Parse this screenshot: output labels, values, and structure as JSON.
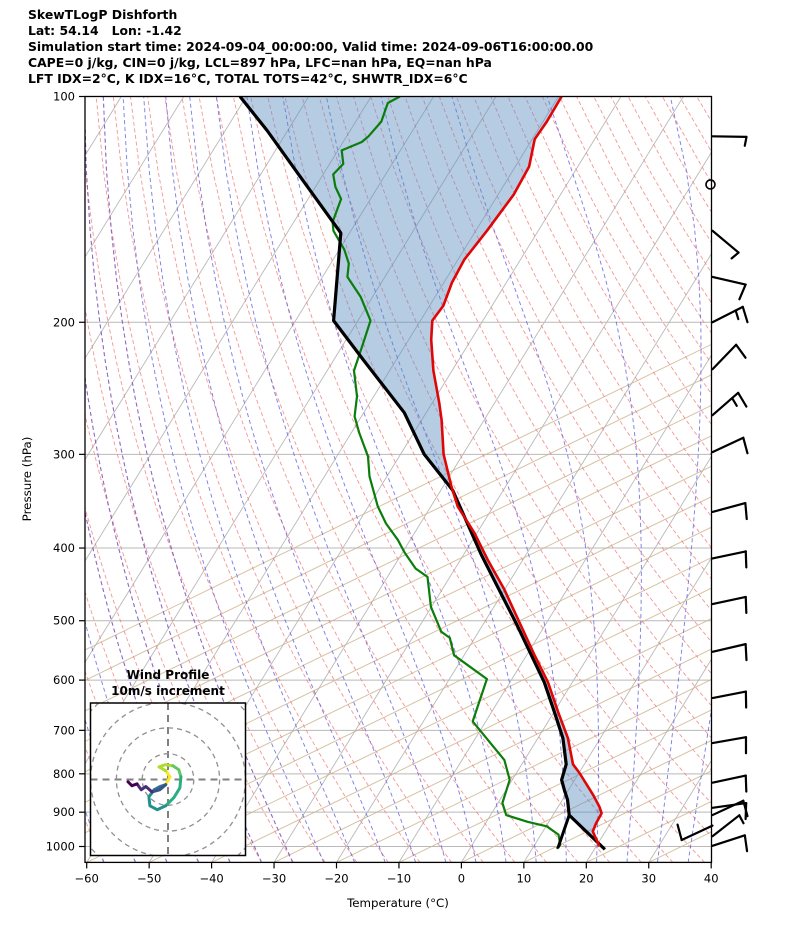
{
  "header": {
    "line1": "SkewTLogP Dishforth",
    "line2": "Lat: 54.14   Lon: -1.42",
    "line3": "Simulation start time: 2024-09-04_00:00:00, Valid time: 2024-09-06T16:00:00.00",
    "line4": "CAPE=0 j/kg, CIN=0 j/kg, LCL=897 hPa, LFC=nan hPa, EQ=nan hPa",
    "line5": "LFT IDX=2°C, K IDX=16°C, TOTAL TOTS=42°C, SHWTR_IDX=6°C"
  },
  "axes": {
    "x_label": "Temperature (°C)",
    "y_label": "Pressure (hPa)",
    "x_ticks": [
      -60,
      -50,
      -40,
      -30,
      -20,
      -10,
      0,
      10,
      20,
      30,
      40
    ],
    "y_ticks": [
      100,
      200,
      300,
      400,
      500,
      600,
      700,
      800,
      900,
      1000
    ],
    "x_range_c": [
      -60,
      40
    ],
    "p_range_hpa": [
      100,
      1050
    ]
  },
  "inset": {
    "title_line1": "Wind Profile",
    "title_line2": "10m/s increment",
    "ring_increment_ms": 10,
    "rings_ms": [
      10,
      20,
      30,
      40
    ]
  },
  "chart_data": {
    "type": "skewt-logp",
    "title": "SkewTLogP Dishforth",
    "station": {
      "lat": 54.14,
      "lon": -1.42
    },
    "indices": {
      "CAPE_jkg": 0,
      "CIN_jkg": 0,
      "LCL_hPa": 897,
      "LFC_hPa": "nan",
      "EQ_hPa": "nan",
      "LFT_IDX_C": 2,
      "K_IDX_C": 16,
      "TOTAL_TOTS_C": 42,
      "SHWTR_IDX_C": 6
    },
    "temperature_profile": [
      [
        1000,
        20.5
      ],
      [
        990,
        20.0
      ],
      [
        955,
        18.0
      ],
      [
        931,
        17.7
      ],
      [
        903,
        17.6
      ],
      [
        885,
        16.6
      ],
      [
        853,
        14.4
      ],
      [
        798,
        10.1
      ],
      [
        777,
        8.2
      ],
      [
        717,
        4.8
      ],
      [
        661,
        0.6
      ],
      [
        604,
        -3.9
      ],
      [
        556,
        -8.7
      ],
      [
        505,
        -14.1
      ],
      [
        453,
        -20.2
      ],
      [
        415,
        -25.6
      ],
      [
        382,
        -30.4
      ],
      [
        352,
        -35.7
      ],
      [
        331,
        -38.7
      ],
      [
        300,
        -43.1
      ],
      [
        270,
        -46.8
      ],
      [
        256,
        -48.9
      ],
      [
        232,
        -53.0
      ],
      [
        211,
        -56.4
      ],
      [
        199,
        -58.1
      ],
      [
        190,
        -57.8
      ],
      [
        177,
        -58.7
      ],
      [
        165,
        -59.0
      ],
      [
        151,
        -58.2
      ],
      [
        135,
        -57.5
      ],
      [
        124,
        -57.8
      ],
      [
        114,
        -59.6
      ],
      [
        108,
        -59.4
      ],
      [
        100,
        -59.5
      ]
    ],
    "dewpoint_profile": [
      [
        1007,
        13.9
      ],
      [
        995,
        14.1
      ],
      [
        964,
        12.8
      ],
      [
        940,
        10.1
      ],
      [
        927,
        6.6
      ],
      [
        908,
        2.5
      ],
      [
        875,
        0.7
      ],
      [
        815,
        -0.4
      ],
      [
        767,
        -3.2
      ],
      [
        681,
        -12.1
      ],
      [
        598,
        -14.0
      ],
      [
        556,
        -21.6
      ],
      [
        527,
        -24.0
      ],
      [
        517,
        -26.0
      ],
      [
        479,
        -30.1
      ],
      [
        437,
        -33.6
      ],
      [
        426,
        -36.3
      ],
      [
        406,
        -39.6
      ],
      [
        390,
        -42.0
      ],
      [
        371,
        -45.5
      ],
      [
        352,
        -48.5
      ],
      [
        321,
        -52.8
      ],
      [
        302,
        -55.0
      ],
      [
        281,
        -58.7
      ],
      [
        267,
        -61.1
      ],
      [
        251,
        -62.7
      ],
      [
        232,
        -65.7
      ],
      [
        214,
        -66.9
      ],
      [
        199,
        -68.0
      ],
      [
        185,
        -71.9
      ],
      [
        174,
        -76.0
      ],
      [
        167,
        -77.1
      ],
      [
        160,
        -79.2
      ],
      [
        151,
        -82.8
      ],
      [
        147,
        -83.8
      ],
      [
        137,
        -84.7
      ],
      [
        132,
        -86.8
      ],
      [
        127,
        -88.4
      ],
      [
        123,
        -87.8
      ],
      [
        118,
        -89.4
      ],
      [
        115,
        -87.0
      ],
      [
        113,
        -86.5
      ],
      [
        108,
        -85.9
      ],
      [
        102,
        -86.7
      ],
      [
        100,
        -85.4
      ]
    ],
    "parcel_profile": [
      [
        1009,
        21.7
      ],
      [
        908,
        12.6
      ],
      [
        866,
        10.8
      ],
      [
        840,
        9.3
      ],
      [
        815,
        7.9
      ],
      [
        777,
        7.1
      ],
      [
        717,
        4.0
      ],
      [
        661,
        0.0
      ],
      [
        604,
        -4.5
      ],
      [
        505,
        -14.7
      ],
      [
        408,
        -27.2
      ],
      [
        335,
        -38.1
      ],
      [
        300,
        -46.2
      ],
      [
        264,
        -53.5
      ],
      [
        225,
        -65.1
      ],
      [
        199,
        -73.9
      ],
      [
        152,
        -81.4
      ],
      [
        128,
        -93.4
      ],
      [
        111,
        -103.3
      ],
      [
        100,
        -111.0
      ]
    ],
    "mixing_line": [
      [
        1002,
        14.0
      ],
      [
        908,
        12.6
      ]
    ],
    "shade": "area between parcel profile and temperature profile",
    "wind_barbs": [
      {
        "p": 113,
        "speed_ms": 5,
        "from_deg": 91,
        "angle": -1,
        "type": "half"
      },
      {
        "p": 131,
        "speed_ms": 0,
        "from_deg": 0,
        "angle": 0,
        "type": "calm"
      },
      {
        "p": 151,
        "speed_ms": 5,
        "from_deg": 130,
        "angle": -40,
        "type": "half"
      },
      {
        "p": 174,
        "speed_ms": 10,
        "from_deg": 103,
        "angle": -13,
        "type": "full"
      },
      {
        "p": 200,
        "speed_ms": 15,
        "from_deg": 63,
        "angle": 27,
        "type": "fullhalf"
      },
      {
        "p": 231,
        "speed_ms": 10,
        "from_deg": 44,
        "angle": 46,
        "type": "full"
      },
      {
        "p": 266,
        "speed_ms": 15,
        "from_deg": 49,
        "angle": 41,
        "type": "fullhalf"
      },
      {
        "p": 298,
        "speed_ms": 10,
        "from_deg": 65,
        "angle": 25,
        "type": "full"
      },
      {
        "p": 358,
        "speed_ms": 10,
        "from_deg": 75,
        "angle": 15,
        "type": "full"
      },
      {
        "p": 413,
        "speed_ms": 10,
        "from_deg": 78,
        "angle": 12,
        "type": "full"
      },
      {
        "p": 475,
        "speed_ms": 10,
        "from_deg": 78,
        "angle": 12,
        "type": "full"
      },
      {
        "p": 550,
        "speed_ms": 10,
        "from_deg": 77,
        "angle": 13,
        "type": "full"
      },
      {
        "p": 634,
        "speed_ms": 10,
        "from_deg": 79,
        "angle": 11,
        "type": "full"
      },
      {
        "p": 728,
        "speed_ms": 10,
        "from_deg": 80,
        "angle": 10,
        "type": "full"
      },
      {
        "p": 822,
        "speed_ms": 10,
        "from_deg": 78,
        "angle": 12,
        "type": "full"
      },
      {
        "p": 888,
        "speed_ms": 10,
        "from_deg": 82,
        "angle": 8,
        "type": "full"
      },
      {
        "p": 908,
        "speed_ms": 10,
        "from_deg": 65,
        "angle": 25,
        "type": "full"
      },
      {
        "p": 938,
        "speed_ms": 10,
        "from_deg": 245,
        "angle": 205,
        "type": "full"
      },
      {
        "p": 969,
        "speed_ms": 5,
        "from_deg": 52,
        "angle": 38,
        "type": "half"
      },
      {
        "p": 998,
        "speed_ms": 10,
        "from_deg": 72,
        "angle": 18,
        "type": "full"
      }
    ],
    "hodograph_uv_ms": [
      {
        "color": "#fde725",
        "pts": [
          [
            -0.8,
            -1.7
          ],
          [
            0.8,
            1.0
          ],
          [
            -0.9,
            3.4
          ]
        ]
      },
      {
        "color": "#addc30",
        "pts": [
          [
            -0.9,
            3.4
          ],
          [
            -3.5,
            4.9
          ],
          [
            -1.2,
            5.7
          ],
          [
            1.9,
            5.3
          ]
        ]
      },
      {
        "color": "#5ec962",
        "pts": [
          [
            1.9,
            5.3
          ],
          [
            4.2,
            3.8
          ],
          [
            5.0,
            1.0
          ]
        ]
      },
      {
        "color": "#28ae80",
        "pts": [
          [
            5.0,
            1.0
          ],
          [
            4.6,
            -3.2
          ],
          [
            2.3,
            -7.0
          ],
          [
            -0.9,
            -10.2
          ]
        ]
      },
      {
        "color": "#21918c",
        "pts": [
          [
            -0.9,
            -10.2
          ],
          [
            -4.2,
            -11.7
          ],
          [
            -7.0,
            -10.2
          ],
          [
            -7.4,
            -6.7
          ],
          [
            -5.4,
            -4.0
          ]
        ]
      },
      {
        "color": "#2c728e",
        "pts": [
          [
            -5.4,
            -4.0
          ],
          [
            -3.1,
            -2.7
          ],
          [
            -0.9,
            -2.0
          ]
        ]
      },
      {
        "color": "#3b528b",
        "pts": [
          [
            -0.9,
            -2.0
          ],
          [
            -3.2,
            -4.0
          ],
          [
            -6.2,
            -4.8
          ]
        ]
      },
      {
        "color": "#472d7a",
        "pts": [
          [
            -6.2,
            -4.8
          ],
          [
            -8.6,
            -2.7
          ],
          [
            -10.4,
            -4.0
          ],
          [
            -12.0,
            -1.7
          ]
        ]
      },
      {
        "color": "#440154",
        "pts": [
          [
            -12.0,
            -1.7
          ],
          [
            -14.0,
            -2.4
          ],
          [
            -15.5,
            -0.9
          ]
        ]
      }
    ],
    "colors": {
      "temperature": "#e00606",
      "dewpoint": "#0a7d0a",
      "parcel": "#000000",
      "shade_fill": "#5a8fc0",
      "shade_opacity": 0.45,
      "isotherm": "#b9b9b9",
      "grid": "#b9b9b9",
      "dry_adiabat_solid": "#ccb38c",
      "dry_adiabat_dashed": "#f37b7b",
      "moist_adiabat": "#5f5fe0",
      "ice_moist_adiabat": "#9467bd",
      "barb": "#000000"
    }
  }
}
